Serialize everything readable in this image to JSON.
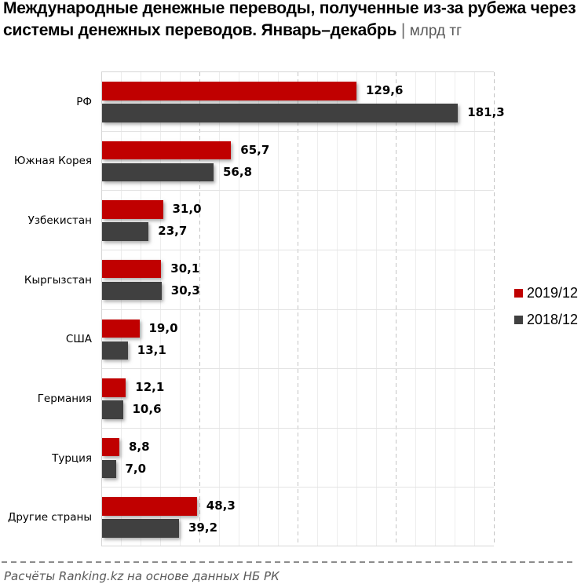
{
  "title": {
    "line1": "Международные денежные переводы, полученные из-за рубежа через",
    "line2": "системы денежных переводов. Январь–декабрь",
    "separator": "|",
    "unit": "млрд тг"
  },
  "legend": {
    "items": [
      {
        "label": "2019/12",
        "color": "#c00000"
      },
      {
        "label": "2018/12",
        "color": "#404040"
      }
    ],
    "position": "right"
  },
  "footer": {
    "source": "Расчёты Ranking.kz на основе данных НБ РК"
  },
  "colors": {
    "series_2019": "#c00000",
    "series_2018": "#404040",
    "title_text": "#000000",
    "unit_text": "#595959",
    "grid_minor": "#ededed",
    "grid_major": "#c4c4c4",
    "plot_border": "#d6d6d6",
    "footer_text": "#595959"
  },
  "chart_data": {
    "type": "bar",
    "orientation": "horizontal",
    "title": "Международные денежные переводы, полученные из-за рубежа через системы денежных переводов. Январь–декабрь",
    "unit": "млрд тг",
    "categories": [
      "РФ",
      "Южная Корея",
      "Узбекистан",
      "Кыргызстан",
      "США",
      "Германия",
      "Турция",
      "Другие страны"
    ],
    "series": [
      {
        "name": "2019/12",
        "color": "#c00000",
        "values": [
          129.6,
          65.7,
          31.0,
          30.1,
          19.0,
          12.1,
          8.8,
          48.3
        ]
      },
      {
        "name": "2018/12",
        "color": "#404040",
        "values": [
          181.3,
          56.8,
          23.7,
          30.3,
          13.1,
          10.6,
          7.0,
          39.2
        ]
      }
    ],
    "xlim": [
      0,
      200
    ],
    "grid": {
      "minor_step": 10,
      "major_step": 50,
      "vertical": true,
      "category_separators": true
    },
    "value_labels": "outside-end",
    "decimal_separator": ",",
    "legend_position": "right",
    "source": "Расчёты Ranking.kz на основе данных НБ РК"
  }
}
